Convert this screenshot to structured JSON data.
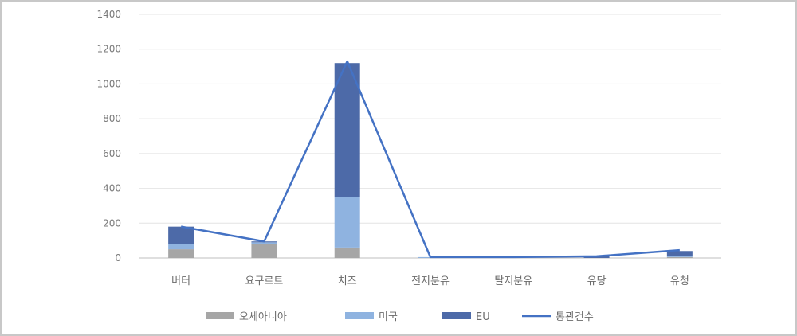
{
  "chart_data": {
    "type": "bar",
    "stacked": true,
    "categories": [
      "버터",
      "요구르트",
      "치즈",
      "전지분유",
      "탈지분유",
      "유당",
      "유청"
    ],
    "ylim": [
      0,
      1400
    ],
    "yticks": [
      0,
      200,
      400,
      600,
      800,
      1000,
      1200,
      1400
    ],
    "grid": true,
    "legend_position": "bottom",
    "series": [
      {
        "name": "오세아니아",
        "kind": "bar",
        "color": "#a6a6a6",
        "values": [
          50,
          80,
          60,
          0,
          0,
          0,
          5
        ]
      },
      {
        "name": "미국",
        "kind": "bar",
        "color": "#8fb3e0",
        "values": [
          30,
          10,
          290,
          5,
          0,
          0,
          5
        ]
      },
      {
        "name": "EU",
        "kind": "bar",
        "color": "#4d6aa8",
        "values": [
          100,
          5,
          770,
          0,
          0,
          10,
          30
        ]
      },
      {
        "name": "통관건수",
        "kind": "line",
        "color": "#4472c4",
        "values": [
          180,
          95,
          1130,
          5,
          5,
          10,
          45
        ]
      }
    ]
  }
}
